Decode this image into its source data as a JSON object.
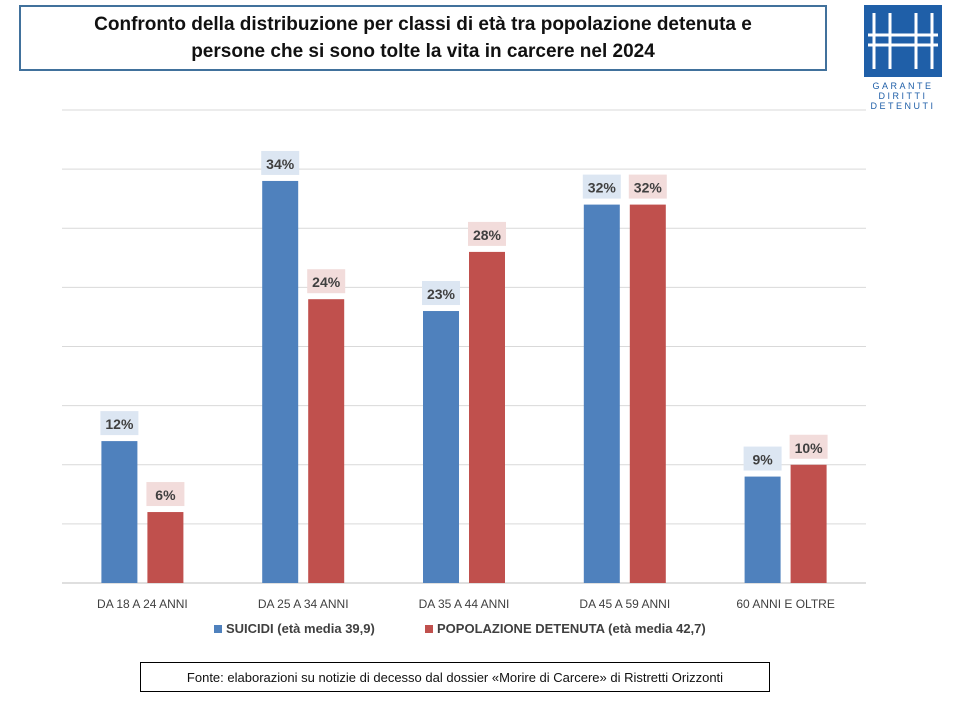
{
  "title": "Confronto della distribuzione per classi di età tra popolazione detenuta e\npersone che si sono tolte la vita in carcere nel 2024",
  "logo": {
    "text": "GARANTE\nDIRITTI\nDETENUTI"
  },
  "source": "Fonte: elaborazioni su notizie di decesso dal dossier  «Morire di Carcere» di Ristretti Orizzonti",
  "chart_data": {
    "type": "bar",
    "title": "Confronto della distribuzione per classi di età tra popolazione detenuta e persone che si sono tolte la vita in carcere nel 2024",
    "categories": [
      "DA 18 A 24 ANNI",
      "DA 25 A 34 ANNI",
      "DA 35 A  44 ANNI",
      "DA 45 A 59 ANNI",
      "60 ANNI E OLTRE"
    ],
    "series": [
      {
        "name": "SUICIDI (età media 39,9)",
        "values": [
          12,
          34,
          23,
          32,
          9
        ],
        "labels": [
          "12%",
          "34%",
          "23%",
          "32%",
          "9%"
        ],
        "color": "#4f81bd",
        "label_bg": "#dce6f2"
      },
      {
        "name": "POPOLAZIONE DETENUTA (età media 42,7)",
        "values": [
          6,
          24,
          28,
          32,
          10
        ],
        "labels": [
          "6%",
          "24%",
          "28%",
          "32%",
          "10%"
        ],
        "color": "#c0504d",
        "label_bg": "#f2dcdb"
      }
    ],
    "ylim": [
      0,
      40
    ],
    "grid": true,
    "legend": "bottom",
    "xlabel": "",
    "ylabel": ""
  }
}
